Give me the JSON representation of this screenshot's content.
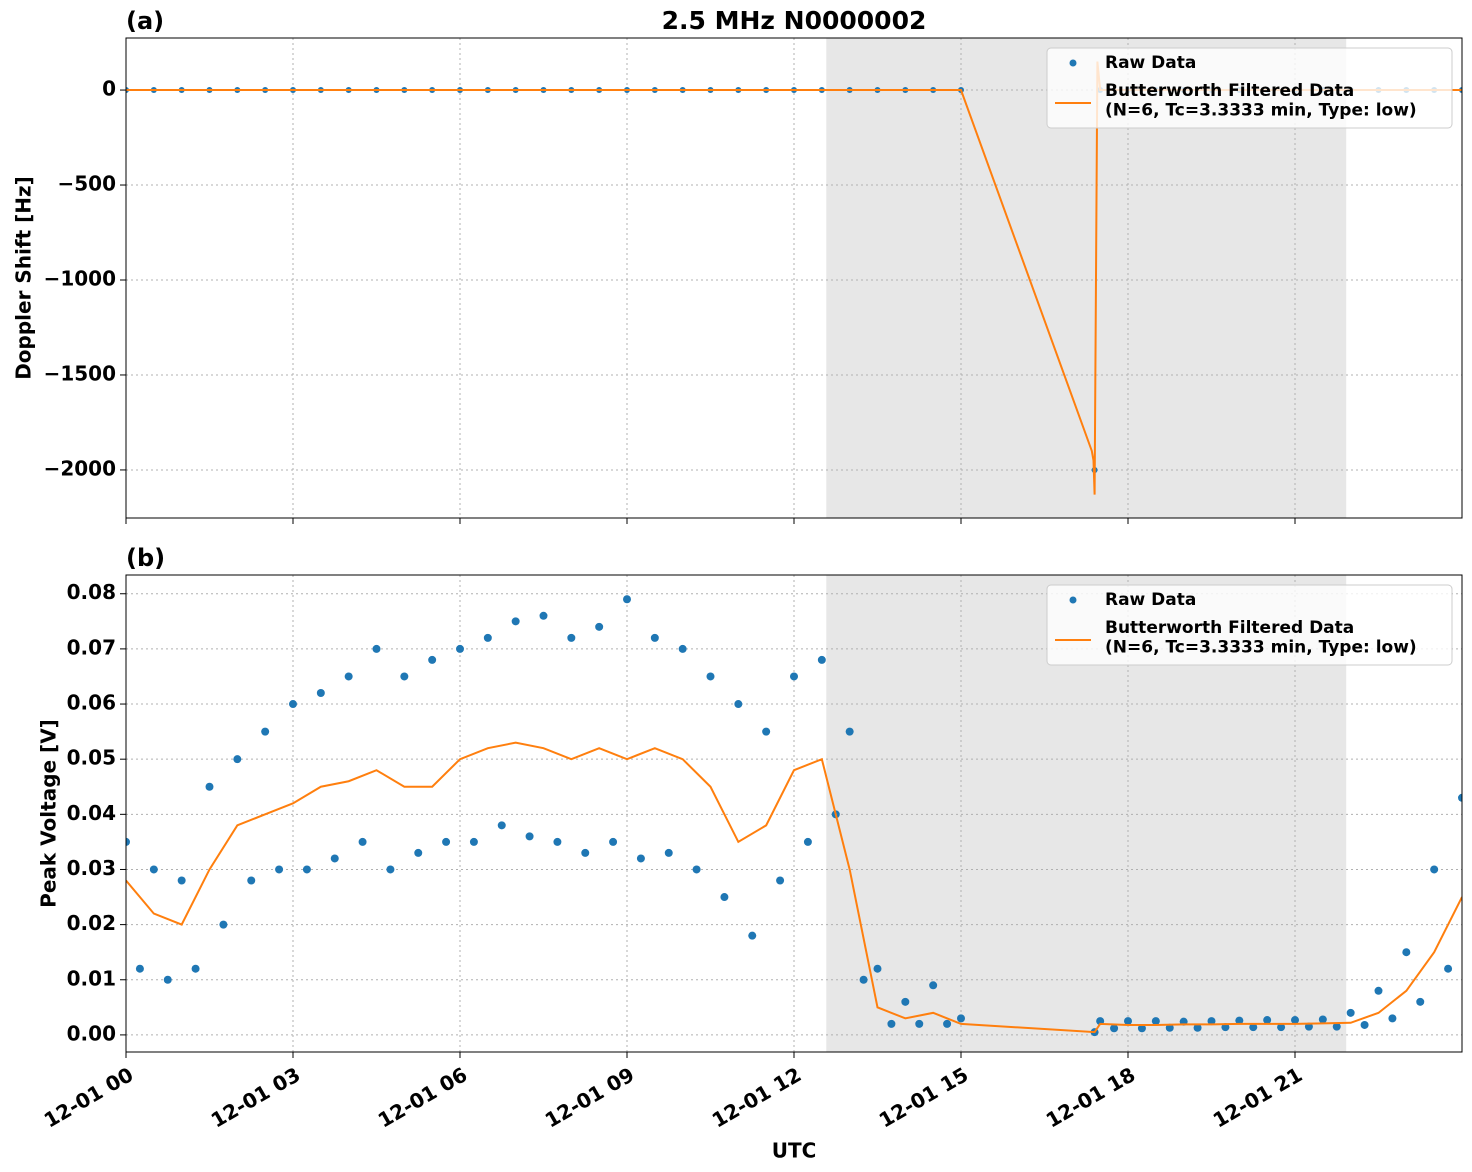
{
  "chart_data": [
    {
      "type": "scatter-line",
      "panel_label": "(a)",
      "title": "2.5 MHz N0000002",
      "ylabel": "Doppler Shift [Hz]",
      "xlim": [
        0,
        24
      ],
      "sharex": true,
      "ylim": [
        -2253,
        274
      ],
      "yticks": [
        {
          "value": 0,
          "label": "0"
        },
        {
          "value": -500,
          "label": "−500"
        },
        {
          "value": -1000,
          "label": "−1000"
        },
        {
          "value": -1500,
          "label": "−1500"
        },
        {
          "value": -2000,
          "label": "−2000"
        }
      ],
      "grid": true,
      "shaded_span": [
        12.58,
        21.92
      ],
      "legend": "upper right",
      "series": [
        {
          "name": "Raw Data",
          "kind": "scatter",
          "color": "#1f77b4",
          "x": [
            0,
            0.5,
            1,
            1.5,
            2,
            2.5,
            3,
            3.5,
            4,
            4.5,
            5,
            5.5,
            6,
            6.5,
            7,
            7.5,
            8,
            8.5,
            9,
            9.5,
            10,
            10.5,
            11,
            11.5,
            12,
            12.5,
            13,
            13.5,
            14,
            14.5,
            15,
            17.4,
            17.5,
            18,
            18.5,
            19,
            19.5,
            20,
            20.5,
            21,
            21.5,
            22,
            22.5,
            23,
            23.5,
            24
          ],
          "values": [
            0,
            0,
            0,
            0,
            0,
            0,
            0,
            0,
            0,
            0,
            0,
            0,
            0,
            0,
            0,
            0,
            0,
            0,
            0,
            0,
            0,
            0,
            0,
            0,
            0,
            0,
            0,
            0,
            0,
            0,
            0,
            -2000,
            0,
            0,
            0,
            0,
            0,
            0,
            0,
            0,
            0,
            0,
            0,
            0,
            0,
            0
          ]
        },
        {
          "name": "Butterworth Filtered Data\n(N=6, Tc=3.3333 min, Type: low)",
          "kind": "line",
          "color": "#ff7f0e",
          "x": [
            0,
            15,
            17.35,
            17.38,
            17.4,
            17.45,
            17.5,
            24
          ],
          "values": [
            0,
            0,
            -1900,
            -1950,
            -2130,
            150,
            0,
            0
          ]
        }
      ]
    },
    {
      "type": "scatter-line",
      "panel_label": "(b)",
      "ylabel": "Peak Voltage [V]",
      "xlabel": "UTC",
      "xlim": [
        0,
        24
      ],
      "xticks": [
        {
          "value": 0,
          "label": "12-01 00"
        },
        {
          "value": 3,
          "label": "12-01 03"
        },
        {
          "value": 6,
          "label": "12-01 06"
        },
        {
          "value": 9,
          "label": "12-01 09"
        },
        {
          "value": 12,
          "label": "12-01 12"
        },
        {
          "value": 15,
          "label": "12-01 15"
        },
        {
          "value": 18,
          "label": "12-01 18"
        },
        {
          "value": 21,
          "label": "12-01 21"
        }
      ],
      "ylim": [
        -0.0031,
        0.0834
      ],
      "yticks": [
        {
          "value": 0,
          "label": "0.00"
        },
        0.01,
        0.02,
        0.03,
        0.04,
        0.05,
        0.06,
        0.07,
        0.08
      ],
      "grid": true,
      "shaded_span": [
        12.58,
        21.92
      ],
      "legend": "upper right",
      "series": [
        {
          "name": "Raw Data",
          "kind": "scatter",
          "color": "#1f77b4",
          "x": [
            0,
            0.25,
            0.5,
            0.75,
            1,
            1.25,
            1.5,
            1.75,
            2,
            2.25,
            2.5,
            2.75,
            3,
            3.25,
            3.5,
            3.75,
            4,
            4.25,
            4.5,
            4.75,
            5,
            5.25,
            5.5,
            5.75,
            6,
            6.25,
            6.5,
            6.75,
            7,
            7.25,
            7.5,
            7.75,
            8,
            8.25,
            8.5,
            8.75,
            9,
            9.25,
            9.5,
            9.75,
            10,
            10.25,
            10.5,
            10.75,
            11,
            11.25,
            11.5,
            11.75,
            12,
            12.25,
            12.5,
            12.75,
            13,
            13.25,
            13.5,
            13.75,
            14,
            14.25,
            14.5,
            14.75,
            15,
            17.4,
            17.5,
            17.75,
            18,
            18.25,
            18.5,
            18.75,
            19,
            19.25,
            19.5,
            19.75,
            20,
            20.25,
            20.5,
            20.75,
            21,
            21.25,
            21.5,
            21.75,
            22,
            22.25,
            22.5,
            22.75,
            23,
            23.25,
            23.5,
            23.75,
            24
          ],
          "values": [
            0.035,
            0.012,
            0.03,
            0.01,
            0.028,
            0.012,
            0.045,
            0.02,
            0.05,
            0.028,
            0.055,
            0.03,
            0.06,
            0.03,
            0.062,
            0.032,
            0.065,
            0.035,
            0.07,
            0.03,
            0.065,
            0.033,
            0.068,
            0.035,
            0.07,
            0.035,
            0.072,
            0.038,
            0.075,
            0.036,
            0.076,
            0.035,
            0.072,
            0.033,
            0.074,
            0.035,
            0.079,
            0.032,
            0.072,
            0.033,
            0.07,
            0.03,
            0.065,
            0.025,
            0.06,
            0.018,
            0.055,
            0.028,
            0.065,
            0.035,
            0.068,
            0.04,
            0.055,
            0.01,
            0.012,
            0.002,
            0.006,
            0.002,
            0.009,
            0.002,
            0.003,
            0.0005,
            0.0025,
            0.0012,
            0.0025,
            0.0012,
            0.0025,
            0.0013,
            0.0024,
            0.0013,
            0.0025,
            0.0014,
            0.0026,
            0.0014,
            0.0027,
            0.0014,
            0.0027,
            0.0015,
            0.0028,
            0.0015,
            0.004,
            0.0018,
            0.008,
            0.003,
            0.015,
            0.006,
            0.03,
            0.012,
            0.043
          ]
        },
        {
          "name": "Butterworth Filtered Data\n(N=6, Tc=3.3333 min, Type: low)",
          "kind": "line",
          "color": "#ff7f0e",
          "x": [
            0,
            0.5,
            1,
            1.5,
            2,
            2.5,
            3,
            3.5,
            4,
            4.5,
            5,
            5.5,
            6,
            6.5,
            7,
            7.5,
            8,
            8.5,
            9,
            9.5,
            10,
            10.5,
            11,
            11.5,
            12,
            12.5,
            13,
            13.5,
            14,
            14.5,
            15,
            17.4,
            17.5,
            18,
            18.5,
            19,
            19.5,
            20,
            20.5,
            21,
            21.5,
            22,
            22.5,
            23,
            23.5,
            24
          ],
          "values": [
            0.028,
            0.022,
            0.02,
            0.03,
            0.038,
            0.04,
            0.042,
            0.045,
            0.046,
            0.048,
            0.045,
            0.045,
            0.05,
            0.052,
            0.053,
            0.052,
            0.05,
            0.052,
            0.05,
            0.052,
            0.05,
            0.045,
            0.035,
            0.038,
            0.048,
            0.05,
            0.03,
            0.005,
            0.003,
            0.004,
            0.002,
            0.0005,
            0.002,
            0.0018,
            0.0018,
            0.0019,
            0.0019,
            0.002,
            0.002,
            0.002,
            0.0021,
            0.0022,
            0.004,
            0.008,
            0.015,
            0.025
          ]
        }
      ]
    }
  ]
}
